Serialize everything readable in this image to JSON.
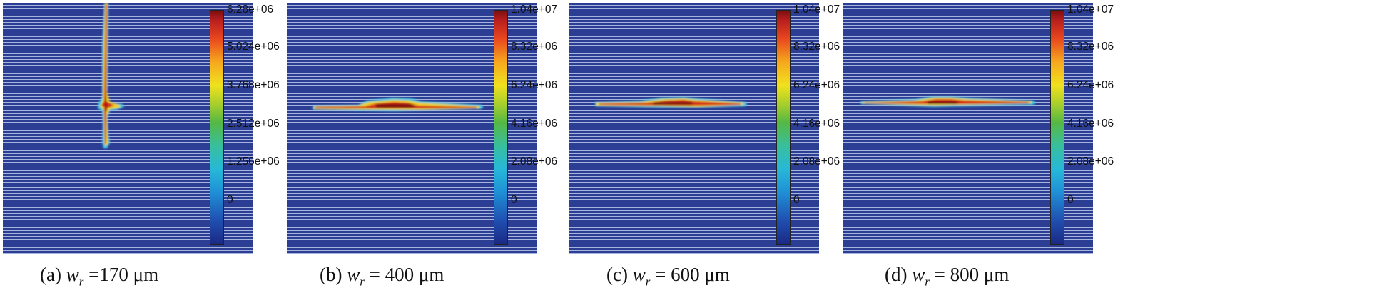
{
  "panels": [
    {
      "label": "(a)",
      "w_symbol": "w",
      "w_subscript": "r",
      "equals": "=",
      "value": "170",
      "unit": "μm",
      "colorbar_ticks": [
        "6.28e+06",
        "5.024e+06",
        "3.768e+06",
        "2.512e+06",
        "1.256e+06",
        "0"
      ]
    },
    {
      "label": "(b)",
      "w_symbol": "w",
      "w_subscript": "r",
      "equals": "=",
      "value": "400",
      "unit": "μm",
      "colorbar_ticks": [
        "1.04e+07",
        "8.32e+06",
        "6.24e+06",
        "4.16e+06",
        "2.08e+06",
        "0"
      ]
    },
    {
      "label": "(c)",
      "w_symbol": "w",
      "w_subscript": "r",
      "equals": "=",
      "value": "600",
      "unit": "μm",
      "colorbar_ticks": [
        "1.04e+07",
        "8.32e+06",
        "6.24e+06",
        "4.16e+06",
        "2.08e+06",
        "0"
      ]
    },
    {
      "label": "(d)",
      "w_symbol": "w",
      "w_subscript": "r",
      "equals": "=",
      "value": "800",
      "unit": "μm",
      "colorbar_ticks": [
        "1.04e+07",
        "8.32e+06",
        "6.24e+06",
        "4.16e+06",
        "2.08e+06",
        "0"
      ]
    }
  ]
}
